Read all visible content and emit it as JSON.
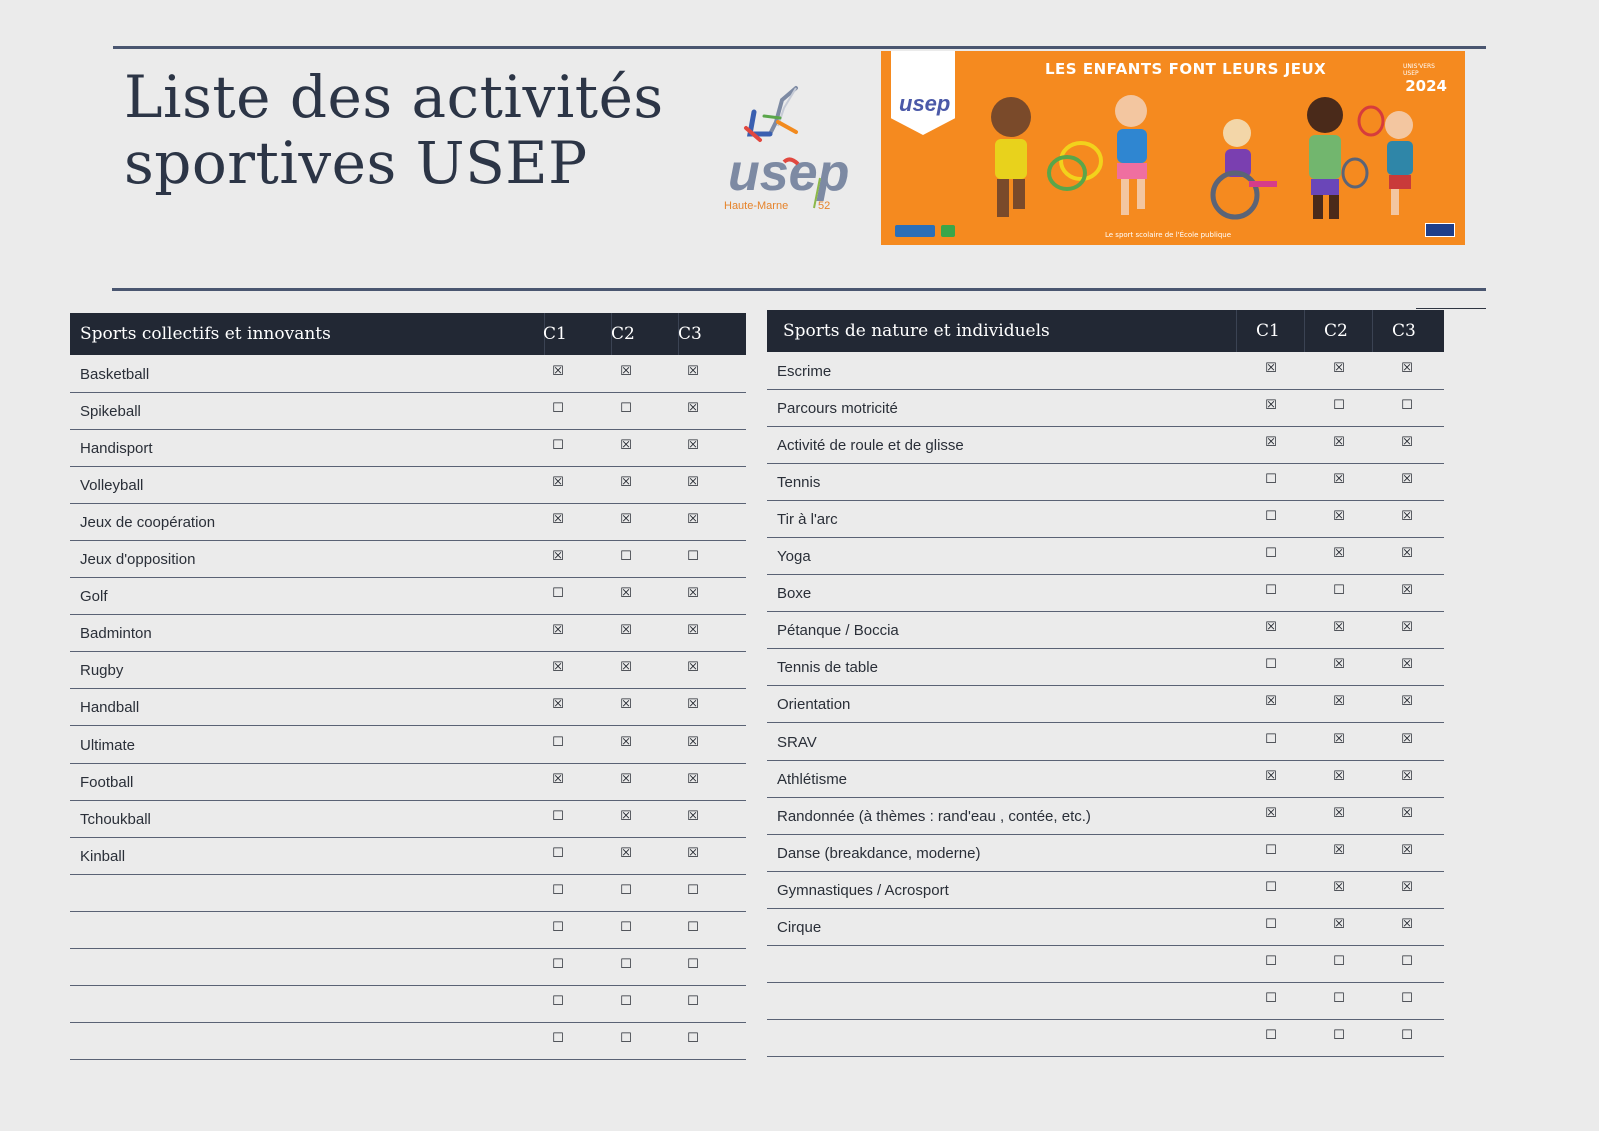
{
  "document": {
    "title_line1": "Liste des activités",
    "title_line2": "sportives USEP"
  },
  "logo": {
    "text": "usep",
    "caption": "Haute-Marne",
    "number": "52"
  },
  "banner": {
    "headline": "LES ENFANTS FONT LEURS JEUX",
    "badge_text": "usep",
    "year_caption": "UNIS'VERS USEP",
    "year": "2024",
    "tagline": "Le sport scolaire de l'École publique",
    "sponsor": "casden"
  },
  "symbols": {
    "checked": "☒",
    "unchecked": "☐"
  },
  "tables": [
    {
      "header": "Sports collectifs et innovants",
      "columns": [
        "C1",
        "C2",
        "C3"
      ],
      "rows": [
        {
          "name": "Basketball",
          "c": [
            1,
            1,
            1
          ]
        },
        {
          "name": "Spikeball",
          "c": [
            0,
            0,
            1
          ]
        },
        {
          "name": "Handisport",
          "c": [
            0,
            1,
            1
          ]
        },
        {
          "name": "Volleyball",
          "c": [
            1,
            1,
            1
          ]
        },
        {
          "name": "Jeux de coopération",
          "c": [
            1,
            1,
            1
          ]
        },
        {
          "name": "Jeux d'opposition",
          "c": [
            1,
            0,
            0
          ]
        },
        {
          "name": "Golf",
          "c": [
            0,
            1,
            1
          ]
        },
        {
          "name": "Badminton",
          "c": [
            1,
            1,
            1
          ]
        },
        {
          "name": "Rugby",
          "c": [
            1,
            1,
            1
          ]
        },
        {
          "name": "Handball",
          "c": [
            1,
            1,
            1
          ]
        },
        {
          "name": "Ultimate",
          "c": [
            0,
            1,
            1
          ]
        },
        {
          "name": "Football",
          "c": [
            1,
            1,
            1
          ]
        },
        {
          "name": "Tchoukball",
          "c": [
            0,
            1,
            1
          ]
        },
        {
          "name": "Kinball",
          "c": [
            0,
            1,
            1
          ]
        },
        {
          "name": "",
          "c": [
            0,
            0,
            0
          ]
        },
        {
          "name": "",
          "c": [
            0,
            0,
            0
          ]
        },
        {
          "name": "",
          "c": [
            0,
            0,
            0
          ]
        },
        {
          "name": "",
          "c": [
            0,
            0,
            0
          ]
        },
        {
          "name": "",
          "c": [
            0,
            0,
            0
          ]
        }
      ]
    },
    {
      "header": "Sports de nature et individuels",
      "columns": [
        "C1",
        "C2",
        "C3"
      ],
      "rows": [
        {
          "name": "Escrime",
          "c": [
            1,
            1,
            1
          ]
        },
        {
          "name": "Parcours motricité",
          "c": [
            1,
            0,
            0
          ]
        },
        {
          "name": "Activité de roule et de glisse",
          "c": [
            1,
            1,
            1
          ]
        },
        {
          "name": "Tennis",
          "c": [
            0,
            1,
            1
          ]
        },
        {
          "name": "Tir à l'arc",
          "c": [
            0,
            1,
            1
          ]
        },
        {
          "name": "Yoga",
          "c": [
            0,
            1,
            1
          ]
        },
        {
          "name": "Boxe",
          "c": [
            0,
            0,
            1
          ]
        },
        {
          "name": "Pétanque / Boccia",
          "c": [
            1,
            1,
            1
          ]
        },
        {
          "name": "Tennis de table",
          "c": [
            0,
            1,
            1
          ]
        },
        {
          "name": "Orientation",
          "c": [
            1,
            1,
            1
          ]
        },
        {
          "name": "SRAV",
          "c": [
            0,
            1,
            1
          ]
        },
        {
          "name": "Athlétisme",
          "c": [
            1,
            1,
            1
          ]
        },
        {
          "name": "Randonnée (à thèmes : rand'eau , contée, etc.)",
          "c": [
            1,
            1,
            1
          ]
        },
        {
          "name": "Danse (breakdance, moderne)",
          "c": [
            0,
            1,
            1
          ]
        },
        {
          "name": "Gymnastiques / Acrosport",
          "c": [
            0,
            1,
            1
          ]
        },
        {
          "name": "Cirque",
          "c": [
            0,
            1,
            1
          ]
        },
        {
          "name": "",
          "c": [
            0,
            0,
            0
          ]
        },
        {
          "name": "",
          "c": [
            0,
            0,
            0
          ]
        },
        {
          "name": "",
          "c": [
            0,
            0,
            0
          ]
        }
      ]
    }
  ]
}
